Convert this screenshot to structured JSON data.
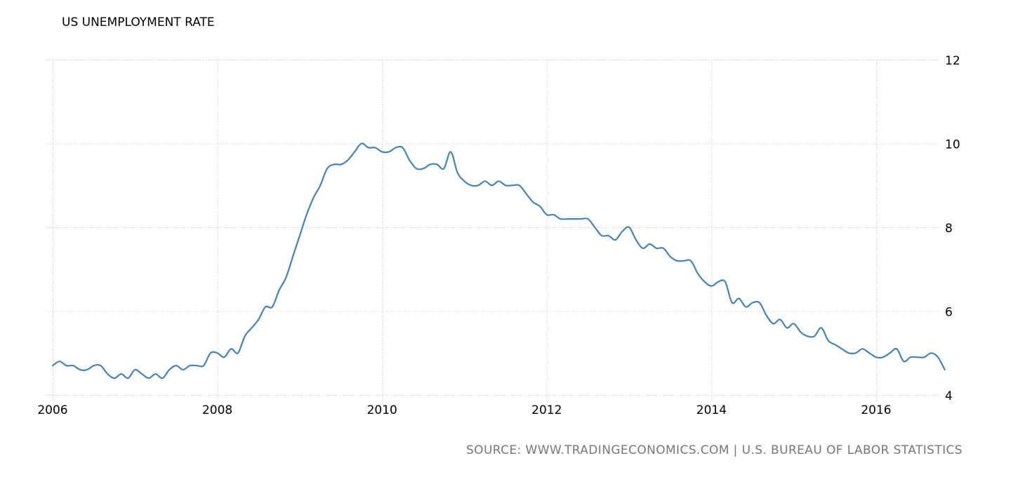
{
  "header": {
    "title": "US UNEMPLOYMENT RATE"
  },
  "footer": {
    "source": "SOURCE: WWW.TRADINGECONOMICS.COM | U.S. BUREAU OF LABOR STATISTICS"
  },
  "colors": {
    "line": "#4682b4",
    "grid": "#c8c8c8",
    "text": "#000000",
    "source_text": "#777777"
  },
  "chart_data": {
    "type": "line",
    "title": "US UNEMPLOYMENT RATE",
    "xlabel": "",
    "ylabel": "",
    "ylim": [
      4,
      12
    ],
    "yticks": [
      4,
      6,
      8,
      10,
      12
    ],
    "xticks": [
      "2006",
      "2008",
      "2010",
      "2012",
      "2014",
      "2016"
    ],
    "x_range": [
      "2006-01",
      "2016-11"
    ],
    "frequency": "monthly",
    "grid": true,
    "legend": null,
    "y_axis_position": "right",
    "series": [
      {
        "name": "US Unemployment Rate",
        "start": "2006-01",
        "values": [
          4.7,
          4.8,
          4.7,
          4.7,
          4.6,
          4.6,
          4.7,
          4.7,
          4.5,
          4.4,
          4.5,
          4.4,
          4.6,
          4.5,
          4.4,
          4.5,
          4.4,
          4.6,
          4.7,
          4.6,
          4.7,
          4.7,
          4.7,
          5.0,
          5.0,
          4.9,
          5.1,
          5.0,
          5.4,
          5.6,
          5.8,
          6.1,
          6.1,
          6.5,
          6.8,
          7.3,
          7.8,
          8.3,
          8.7,
          9.0,
          9.4,
          9.5,
          9.5,
          9.6,
          9.8,
          10.0,
          9.9,
          9.9,
          9.8,
          9.8,
          9.9,
          9.9,
          9.6,
          9.4,
          9.4,
          9.5,
          9.5,
          9.4,
          9.8,
          9.3,
          9.1,
          9.0,
          9.0,
          9.1,
          9.0,
          9.1,
          9.0,
          9.0,
          9.0,
          8.8,
          8.6,
          8.5,
          8.3,
          8.3,
          8.2,
          8.2,
          8.2,
          8.2,
          8.2,
          8.0,
          7.8,
          7.8,
          7.7,
          7.9,
          8.0,
          7.7,
          7.5,
          7.6,
          7.5,
          7.5,
          7.3,
          7.2,
          7.2,
          7.2,
          6.9,
          6.7,
          6.6,
          6.7,
          6.7,
          6.2,
          6.3,
          6.1,
          6.2,
          6.2,
          5.9,
          5.7,
          5.8,
          5.6,
          5.7,
          5.5,
          5.4,
          5.4,
          5.6,
          5.3,
          5.2,
          5.1,
          5.0,
          5.0,
          5.1,
          5.0,
          4.9,
          4.9,
          5.0,
          5.1,
          4.8,
          4.9,
          4.9,
          4.9,
          5.0,
          4.9,
          4.6
        ]
      }
    ]
  }
}
